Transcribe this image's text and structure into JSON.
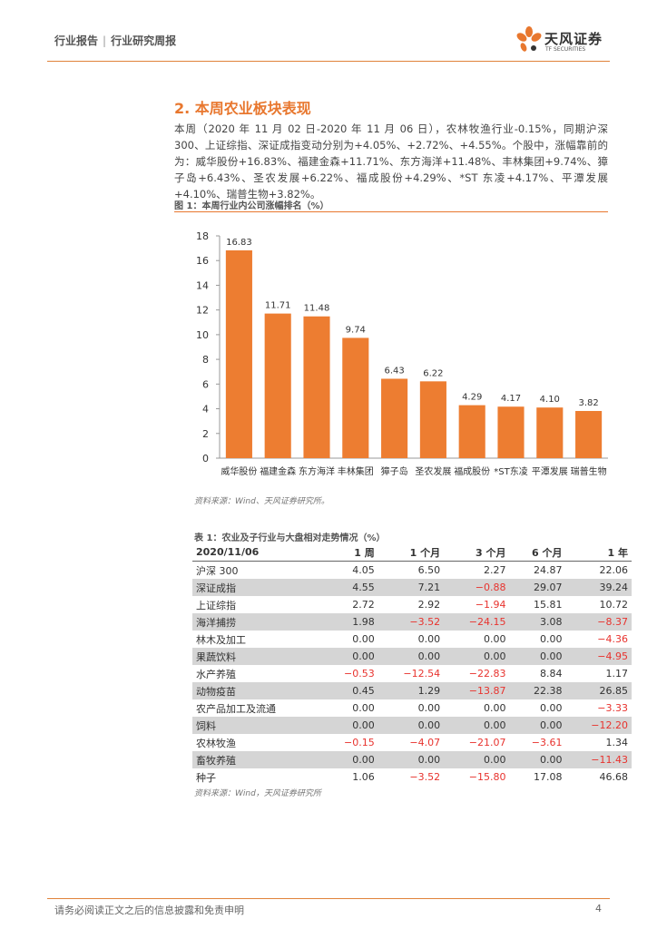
{
  "header": {
    "report_type": "行业报告",
    "separator": "|",
    "report_name": "行业研究周报"
  },
  "logo": {
    "name_cn": "天风证券",
    "name_en": "TF SECURITIES"
  },
  "section": {
    "title": "2. 本周农业板块表现",
    "paragraph": "本周（2020 年 11 月 02 日-2020 年 11 月 06 日），农林牧渔行业-0.15%，同期沪深 300、上证综指、深证成指变动分别为+4.05%、+2.72%、+4.55%。个股中，涨幅靠前的为：威华股份+16.83%、福建金森+11.71%、东方海洋+11.48%、丰林集团+9.74%、獐子岛+6.43%、圣农发展+6.22%、福成股份+4.29%、*ST 东凌+4.17%、平潭发展+4.10%、瑞普生物+3.82%。"
  },
  "figure": {
    "title": "图 1：本周行业内公司涨幅排名（%）",
    "source": "资料来源：Wind、天风证券研究所。"
  },
  "chart_data": {
    "type": "bar",
    "title": "图 1：本周行业内公司涨幅排名（%）",
    "categories": [
      "威华股份",
      "福建金森",
      "东方海洋",
      "丰林集团",
      "獐子岛",
      "圣农发展",
      "福成股份",
      "*ST东凌",
      "平潭发展",
      "瑞普生物"
    ],
    "values": [
      16.83,
      11.71,
      11.48,
      9.74,
      6.43,
      6.22,
      4.29,
      4.17,
      4.1,
      3.82
    ],
    "value_labels": [
      "16.83",
      "11.71",
      "11.48",
      "9.74",
      "6.43",
      "6.22",
      "4.29",
      "4.17",
      "4.10",
      "3.82"
    ],
    "yticks": [
      "0",
      "2",
      "4",
      "6",
      "8",
      "10",
      "12",
      "14",
      "16",
      "18"
    ],
    "ylim": [
      0,
      18
    ],
    "xlabel": "",
    "ylabel": "",
    "bar_color": "#ED7D31"
  },
  "table": {
    "title": "表 1：农业及子行业与大盘相对走势情况（%）",
    "headers": [
      "2020/11/06",
      "1 周",
      "1 个月",
      "3 个月",
      "6 个月",
      "1 年"
    ],
    "rows": [
      [
        "沪深 300",
        "4.05",
        "6.50",
        "2.27",
        "24.87",
        "22.06"
      ],
      [
        "深证成指",
        "4.55",
        "7.21",
        "−0.88",
        "29.07",
        "39.24"
      ],
      [
        "上证综指",
        "2.72",
        "2.92",
        "−1.94",
        "15.81",
        "10.72"
      ],
      [
        "海洋捕捞",
        "1.98",
        "−3.52",
        "−24.15",
        "3.08",
        "−8.37"
      ],
      [
        "林木及加工",
        "0.00",
        "0.00",
        "0.00",
        "0.00",
        "−4.36"
      ],
      [
        "果蔬饮料",
        "0.00",
        "0.00",
        "0.00",
        "0.00",
        "−4.95"
      ],
      [
        "水产养殖",
        "−0.53",
        "−12.54",
        "−22.83",
        "8.84",
        "1.17"
      ],
      [
        "动物疫苗",
        "0.45",
        "1.29",
        "−13.87",
        "22.38",
        "26.85"
      ],
      [
        "农产品加工及流通",
        "0.00",
        "0.00",
        "0.00",
        "0.00",
        "−3.33"
      ],
      [
        "饲料",
        "0.00",
        "0.00",
        "0.00",
        "0.00",
        "−12.20"
      ],
      [
        "农林牧渔",
        "−0.15",
        "−4.07",
        "−21.07",
        "−3.61",
        "1.34"
      ],
      [
        "畜牧养殖",
        "0.00",
        "0.00",
        "0.00",
        "0.00",
        "−11.43"
      ],
      [
        "种子",
        "1.06",
        "−3.52",
        "−15.80",
        "17.08",
        "46.68"
      ]
    ],
    "source": "资料来源：Wind，天风证券研究所"
  },
  "footer": {
    "disclaimer": "请务必阅读正文之后的信息披露和免责申明",
    "page": "4"
  },
  "colors": {
    "accent": "#e8772e",
    "negative": "#e8332e",
    "shade": "#d5d5d5"
  }
}
